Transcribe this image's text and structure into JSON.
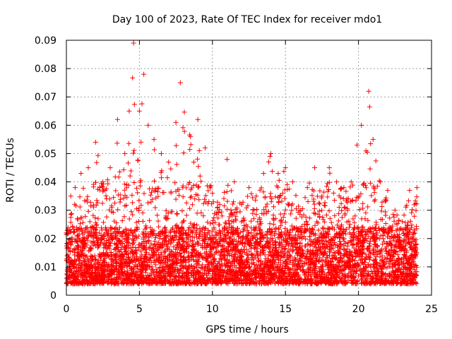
{
  "chart_data": {
    "type": "scatter",
    "title": "Day 100 of 2023, Rate Of TEC Index for receiver mdo1",
    "xlabel": "GPS time / hours",
    "ylabel": "ROTI / TECUs",
    "xlim": [
      0,
      25
    ],
    "ylim": [
      0,
      0.09
    ],
    "x_ticks": [
      "0",
      "5",
      "10",
      "15",
      "20",
      "25"
    ],
    "y_ticks": [
      "0",
      "0.01",
      "0.02",
      "0.03",
      "0.04",
      "0.05",
      "0.06",
      "0.07",
      "0.08",
      "0.09"
    ],
    "x_tick_values": [
      0,
      5,
      10,
      15,
      20,
      25
    ],
    "y_tick_values": [
      0,
      0.01,
      0.02,
      0.03,
      0.04,
      0.05,
      0.06,
      0.07,
      0.08,
      0.09
    ],
    "grid": true,
    "marker": "plus",
    "point_color": "#ff0000",
    "data_extent_hours": [
      0,
      24
    ],
    "series": [
      {
        "envelope_hours": [
          0,
          0.3,
          0.6,
          1,
          1.5,
          2,
          2.5,
          3,
          3.5,
          4,
          4.3,
          4.6,
          5,
          5.3,
          5.6,
          6,
          6.5,
          7,
          7.5,
          7.8,
          8.5,
          9,
          9.5,
          10,
          10.5,
          11,
          11.5,
          12,
          12.5,
          13,
          13.5,
          14,
          14.5,
          15,
          15.5,
          16,
          16.5,
          17,
          17.5,
          18,
          18.5,
          19,
          19.5,
          19.9,
          20.2,
          20.7,
          21,
          21.5,
          22,
          22.5,
          23,
          23.5,
          24
        ],
        "envelope_max": [
          0.022,
          0.035,
          0.038,
          0.043,
          0.045,
          0.054,
          0.04,
          0.045,
          0.062,
          0.05,
          0.065,
          0.089,
          0.065,
          0.078,
          0.06,
          0.055,
          0.05,
          0.047,
          0.061,
          0.075,
          0.056,
          0.062,
          0.052,
          0.036,
          0.032,
          0.048,
          0.04,
          0.032,
          0.038,
          0.035,
          0.043,
          0.05,
          0.043,
          0.045,
          0.04,
          0.03,
          0.038,
          0.045,
          0.035,
          0.045,
          0.04,
          0.038,
          0.04,
          0.053,
          0.06,
          0.072,
          0.055,
          0.04,
          0.037,
          0.03,
          0.026,
          0.037,
          0.038
        ]
      }
    ]
  }
}
